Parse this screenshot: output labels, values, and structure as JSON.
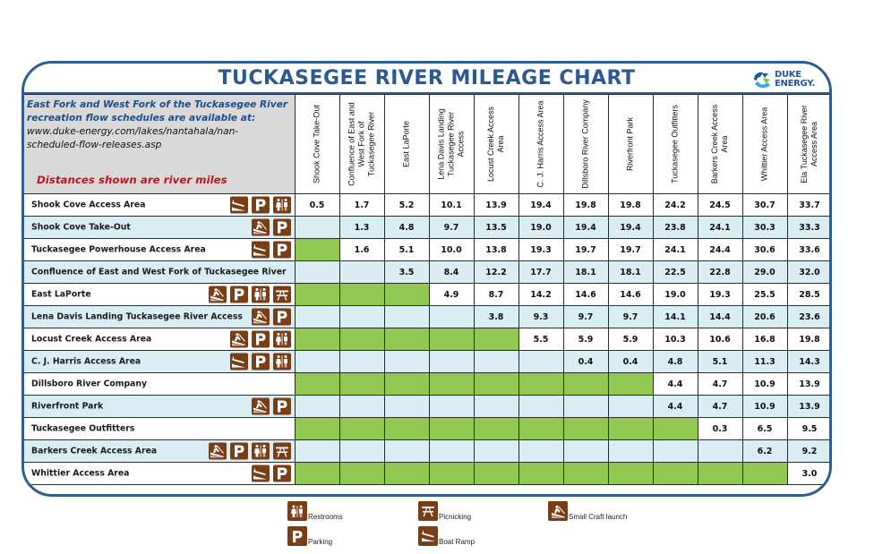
{
  "header": {
    "title": "TUCKASEGEE RIVER MILEAGE CHART",
    "logo": {
      "line1": "DUKE",
      "line2": "ENERGY."
    }
  },
  "info": {
    "line1": "East Fork and West Fork of the Tuckasegee River",
    "line2": "recreation flow schedules are available at:",
    "url1": "www.duke-energy.com/lakes/nantahala/nan-",
    "url2": "scheduled-flow-releases.asp",
    "note": "Distances shown are  river miles"
  },
  "columns": [
    "Shook Cove Take-Out",
    "Confluence of East and West Fork of Tuckasegee River",
    "East LaPorte",
    "Lena Davis Landing Tuckasegee River Access",
    "Locust Creek Access Area",
    "C. J. Harris Access Area",
    "Dillsboro River Company",
    "Riverfront Park",
    "Tuckasegee Outfitters",
    "Barkers Creek Access Area",
    "Whittier Access Area",
    "Ela Tuckasegee River Access Area"
  ],
  "rows": [
    {
      "name": "Shook Cove Access Area",
      "icons": [
        "boat-ramp",
        "parking",
        "restrooms"
      ],
      "values": [
        "0.5",
        "1.7",
        "5.2",
        "10.1",
        "13.9",
        "19.4",
        "19.8",
        "19.8",
        "24.2",
        "24.5",
        "30.7",
        "33.7"
      ]
    },
    {
      "name": "Shook Cove Take-Out",
      "icons": [
        "small-craft-launch",
        "parking"
      ],
      "values": [
        "",
        "1.3",
        "4.8",
        "9.7",
        "13.5",
        "19.0",
        "19.4",
        "19.4",
        "23.8",
        "24.1",
        "30.3",
        "33.3"
      ]
    },
    {
      "name": "Tuckasegee Powerhouse Access Area",
      "icons": [
        "boat-ramp",
        "parking"
      ],
      "values": [
        "",
        "1.6",
        "5.1",
        "10.0",
        "13.8",
        "19.3",
        "19.7",
        "19.7",
        "24.1",
        "24.4",
        "30.6",
        "33.6"
      ]
    },
    {
      "name": "Confluence of East and West Fork of Tuckasegee River",
      "icons": [],
      "values": [
        "",
        "",
        "3.5",
        "8.4",
        "12.2",
        "17.7",
        "18.1",
        "18.1",
        "22.5",
        "22.8",
        "29.0",
        "32.0"
      ]
    },
    {
      "name": "East LaPorte",
      "icons": [
        "small-craft-launch",
        "parking",
        "restrooms",
        "picnicking"
      ],
      "values": [
        "",
        "",
        "",
        "4.9",
        "8.7",
        "14.2",
        "14.6",
        "14.6",
        "19.0",
        "19.3",
        "25.5",
        "28.5"
      ]
    },
    {
      "name": "Lena Davis Landing Tuckasegee River Access",
      "icons": [
        "small-craft-launch",
        "parking"
      ],
      "values": [
        "",
        "",
        "",
        "",
        "3.8",
        "9.3",
        "9.7",
        "9.7",
        "14.1",
        "14.4",
        "20.6",
        "23.6"
      ]
    },
    {
      "name": "Locust Creek Access Area",
      "icons": [
        "small-craft-launch",
        "parking",
        "restrooms"
      ],
      "values": [
        "",
        "",
        "",
        "",
        "",
        "5.5",
        "5.9",
        "5.9",
        "10.3",
        "10.6",
        "16.8",
        "19.8"
      ]
    },
    {
      "name": "C. J. Harris Access Area",
      "icons": [
        "boat-ramp",
        "parking",
        "restrooms"
      ],
      "values": [
        "",
        "",
        "",
        "",
        "",
        "",
        "0.4",
        "0.4",
        "4.8",
        "5.1",
        "11.3",
        "14.3"
      ]
    },
    {
      "name": "Dillsboro River Company",
      "icons": [],
      "values": [
        "",
        "",
        "",
        "",
        "",
        "",
        "",
        "",
        "4.4",
        "4.7",
        "10.9",
        "13.9"
      ]
    },
    {
      "name": "Riverfront Park",
      "icons": [
        "small-craft-launch",
        "parking"
      ],
      "values": [
        "",
        "",
        "",
        "",
        "",
        "",
        "",
        "",
        "4.4",
        "4.7",
        "10.9",
        "13.9"
      ]
    },
    {
      "name": "Tuckasegee Outfitters",
      "icons": [],
      "values": [
        "",
        "",
        "",
        "",
        "",
        "",
        "",
        "",
        "",
        "0.3",
        "6.5",
        "9.5"
      ]
    },
    {
      "name": "Barkers Creek Access Area",
      "icons": [
        "small-craft-launch",
        "parking",
        "restrooms",
        "picnicking"
      ],
      "values": [
        "",
        "",
        "",
        "",
        "",
        "",
        "",
        "",
        "",
        "",
        "6.2",
        "9.2"
      ]
    },
    {
      "name": "Whittier Access Area",
      "icons": [
        "boat-ramp",
        "parking"
      ],
      "values": [
        "",
        "",
        "",
        "",
        "",
        "",
        "",
        "",
        "",
        "",
        "",
        "3.0"
      ]
    }
  ],
  "legend": [
    {
      "icon": "restrooms",
      "label": "Restrooms"
    },
    {
      "icon": "picnicking",
      "label": "Picnicking"
    },
    {
      "icon": "small-craft-launch",
      "label": "Small Craft launch"
    },
    {
      "icon": "parking",
      "label": "Parking"
    },
    {
      "icon": "boat-ramp",
      "label": "Boat Ramp"
    }
  ],
  "colors": {
    "frame": "#2e5d94",
    "title": "#2a5a8f",
    "row_white": "#ffffff",
    "row_blue": "#daedf2",
    "empty_green": "#92c851",
    "icon_brown": "#7a3e16",
    "note_red": "#c0141c"
  }
}
